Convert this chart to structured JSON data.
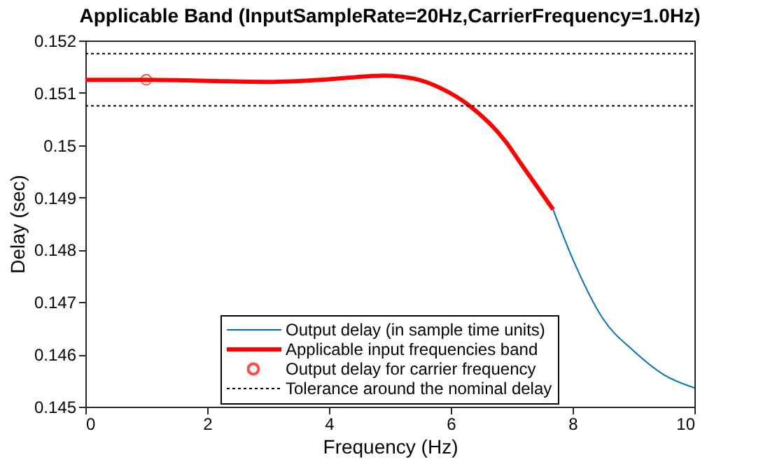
{
  "chart_data": {
    "type": "line",
    "title": "Applicable Band (InputSampleRate=20Hz,CarrierFrequency=1.0Hz)",
    "xlabel": "Frequency (Hz)",
    "ylabel": "Delay (sec)",
    "series": [
      {
        "name": "Output delay (in sample time units)",
        "color": "#0072bd",
        "x": [
          7.68,
          8,
          8.5,
          9,
          9.5,
          10
        ],
        "values": [
          0.14877,
          0.14783,
          0.14668,
          0.14607,
          0.14561,
          0.14536
        ]
      },
      {
        "name": "Applicable input frequencies band",
        "color": "#ff0000",
        "x": [
          0,
          1,
          2,
          3,
          4,
          4.9,
          5.4,
          5.85,
          6.3,
          6.9,
          7.15,
          7.68
        ],
        "values": [
          0.15125,
          0.15125,
          0.15123,
          0.15121,
          0.15126,
          0.15133,
          0.15127,
          0.15108,
          0.15076,
          0.15007,
          0.14965,
          0.14877
        ]
      },
      {
        "name": "Output delay for carrier frequency",
        "color": "#ff0000",
        "type": "scatter",
        "marker": "circle",
        "x": [
          1
        ],
        "values": [
          0.15125
        ]
      }
    ],
    "ref_lines": [
      {
        "axis": "y",
        "value": 0.15175,
        "label": "Tolerance around the nominal delay",
        "color": "#000000",
        "line_style": "dotted"
      },
      {
        "axis": "y",
        "value": 0.15075,
        "color": "#000000",
        "line_style": "dotted"
      }
    ],
    "xlim": [
      0,
      10
    ],
    "xticks": [
      0,
      2,
      4,
      6,
      8,
      10
    ],
    "ylim": [
      0.145,
      0.152
    ],
    "yticks": [
      0.145,
      0.146,
      0.147,
      0.148,
      0.149,
      0.15,
      0.151,
      0.152
    ],
    "grid": false,
    "legend": "bottom"
  }
}
